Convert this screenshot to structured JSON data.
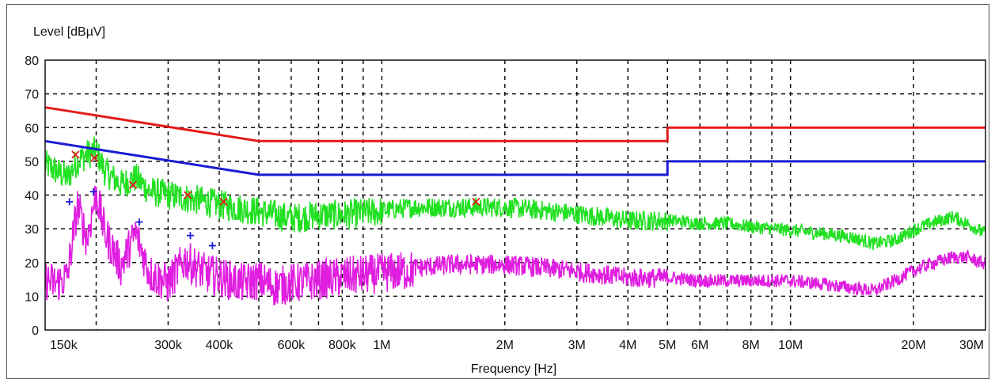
{
  "chart_data": {
    "type": "line",
    "ylabel": "Level [dBµV]",
    "xlabel": "Frequency [Hz]",
    "x_scale": "log",
    "xlim": [
      150000,
      30000000
    ],
    "ylim": [
      0,
      80
    ],
    "grid": true,
    "x_ticks": [
      {
        "value": 150000,
        "label": "150k"
      },
      {
        "value": 300000,
        "label": "300k"
      },
      {
        "value": 400000,
        "label": "400k"
      },
      {
        "value": 600000,
        "label": "600k"
      },
      {
        "value": 800000,
        "label": "800k"
      },
      {
        "value": 1000000,
        "label": "1M"
      },
      {
        "value": 2000000,
        "label": "2M"
      },
      {
        "value": 3000000,
        "label": "3M"
      },
      {
        "value": 4000000,
        "label": "4M"
      },
      {
        "value": 5000000,
        "label": "5M"
      },
      {
        "value": 6000000,
        "label": "6M"
      },
      {
        "value": 8000000,
        "label": "8M"
      },
      {
        "value": 10000000,
        "label": "10M"
      },
      {
        "value": 20000000,
        "label": "20M"
      },
      {
        "value": 30000000,
        "label": "30M"
      }
    ],
    "x_gridlines": [
      200000,
      300000,
      400000,
      500000,
      600000,
      700000,
      800000,
      900000,
      1000000,
      2000000,
      3000000,
      4000000,
      5000000,
      6000000,
      7000000,
      8000000,
      9000000,
      10000000,
      20000000,
      30000000
    ],
    "y_ticks": [
      0,
      10,
      20,
      30,
      40,
      50,
      60,
      70,
      80
    ],
    "limit_lines": [
      {
        "color": "#e41a1a",
        "points": [
          [
            150000,
            66
          ],
          [
            500000,
            56
          ],
          [
            5000000,
            56
          ],
          [
            5000000,
            60
          ],
          [
            30000000,
            60
          ]
        ]
      },
      {
        "color": "#1a1ad4",
        "points": [
          [
            150000,
            56
          ],
          [
            500000,
            46
          ],
          [
            5000000,
            46
          ],
          [
            5000000,
            50
          ],
          [
            30000000,
            50
          ]
        ]
      }
    ],
    "series": [
      {
        "color": "#22e022",
        "values_xy": [
          [
            150000,
            50
          ],
          [
            160000,
            48
          ],
          [
            170000,
            46
          ],
          [
            180000,
            51
          ],
          [
            190000,
            53
          ],
          [
            200000,
            54
          ],
          [
            210000,
            48
          ],
          [
            230000,
            44
          ],
          [
            250000,
            46
          ],
          [
            270000,
            42
          ],
          [
            300000,
            41
          ],
          [
            330000,
            40
          ],
          [
            370000,
            39
          ],
          [
            400000,
            38
          ],
          [
            450000,
            37
          ],
          [
            500000,
            36
          ],
          [
            550000,
            35
          ],
          [
            600000,
            34
          ],
          [
            700000,
            35
          ],
          [
            800000,
            35
          ],
          [
            1000000,
            36
          ],
          [
            1200000,
            37
          ],
          [
            1500000,
            37
          ],
          [
            2000000,
            37
          ],
          [
            2500000,
            36
          ],
          [
            3000000,
            35
          ],
          [
            3500000,
            34
          ],
          [
            4000000,
            33
          ],
          [
            5000000,
            33
          ],
          [
            6000000,
            32
          ],
          [
            7000000,
            32
          ],
          [
            8000000,
            31
          ],
          [
            10000000,
            30
          ],
          [
            12000000,
            29
          ],
          [
            14000000,
            28
          ],
          [
            16000000,
            26
          ],
          [
            18000000,
            27
          ],
          [
            20000000,
            30
          ],
          [
            22000000,
            32
          ],
          [
            25000000,
            34
          ],
          [
            27000000,
            32
          ],
          [
            30000000,
            29
          ]
        ]
      },
      {
        "color": "#e01ee0",
        "values_xy": [
          [
            150000,
            16
          ],
          [
            160000,
            15
          ],
          [
            170000,
            17
          ],
          [
            180000,
            38
          ],
          [
            190000,
            28
          ],
          [
            200000,
            42
          ],
          [
            210000,
            30
          ],
          [
            230000,
            20
          ],
          [
            250000,
            30
          ],
          [
            270000,
            18
          ],
          [
            300000,
            15
          ],
          [
            330000,
            22
          ],
          [
            370000,
            18
          ],
          [
            400000,
            17
          ],
          [
            450000,
            15
          ],
          [
            500000,
            16
          ],
          [
            550000,
            14
          ],
          [
            600000,
            15
          ],
          [
            700000,
            16
          ],
          [
            800000,
            17
          ],
          [
            1000000,
            18
          ],
          [
            1200000,
            19
          ],
          [
            1500000,
            20
          ],
          [
            2000000,
            20
          ],
          [
            2500000,
            19
          ],
          [
            3000000,
            18
          ],
          [
            3500000,
            17
          ],
          [
            4000000,
            16
          ],
          [
            5000000,
            16
          ],
          [
            6000000,
            15
          ],
          [
            7000000,
            15
          ],
          [
            8000000,
            15
          ],
          [
            10000000,
            15
          ],
          [
            12000000,
            14
          ],
          [
            14000000,
            13
          ],
          [
            16000000,
            12
          ],
          [
            18000000,
            15
          ],
          [
            20000000,
            18
          ],
          [
            22000000,
            20
          ],
          [
            25000000,
            22
          ],
          [
            27000000,
            22
          ],
          [
            30000000,
            20
          ]
        ]
      }
    ],
    "markers": [
      {
        "symbol": "x",
        "color": "#e41a1a",
        "points": [
          [
            178000,
            52
          ],
          [
            198000,
            51
          ],
          [
            246000,
            43
          ],
          [
            335000,
            40
          ],
          [
            410000,
            38
          ],
          [
            1700000,
            38
          ]
        ]
      },
      {
        "symbol": "+",
        "color": "#1a1ad4",
        "points": [
          [
            172000,
            38
          ],
          [
            197000,
            41
          ],
          [
            255000,
            32
          ],
          [
            340000,
            28
          ],
          [
            385000,
            25
          ]
        ]
      }
    ]
  }
}
